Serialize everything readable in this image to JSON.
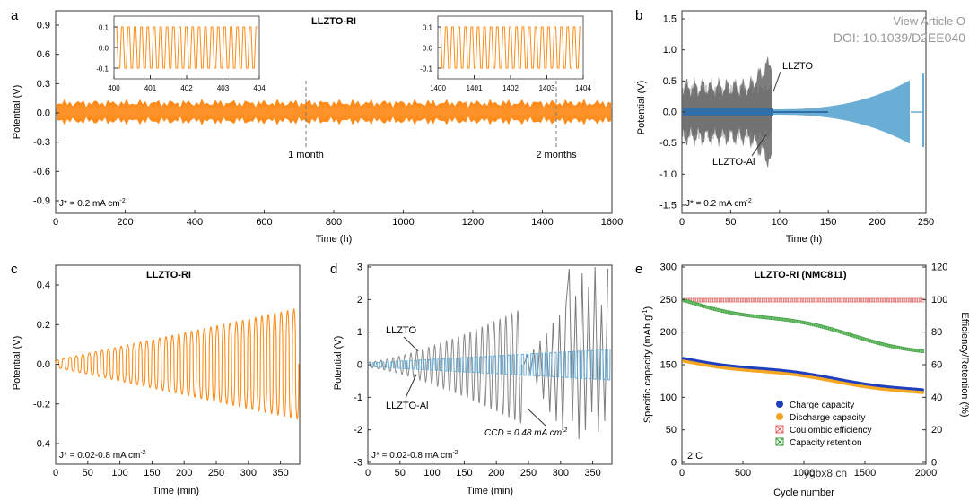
{
  "watermark": {
    "line1": "View Article O",
    "line2": "DOI: 10.1039/D2EE040",
    "site": "ygbx8.cn"
  },
  "panels": {
    "a": {
      "letter": "a",
      "title": "LLZTO-RI",
      "xlabel": "Time (h)",
      "ylabel": "Potential (V)",
      "xticks": [
        "0",
        "200",
        "400",
        "600",
        "800",
        "1000",
        "1200",
        "1400",
        "1600"
      ],
      "yticks": [
        "0.9",
        "0.6",
        "0.3",
        "0.0",
        "-0.3",
        "-0.6",
        "-0.9"
      ],
      "jlabel": "J* = 0.2 mA cm",
      "jsup": "-2",
      "ann1": "1 month",
      "ann2": "2 months",
      "inset1_xticks": [
        "400",
        "401",
        "402",
        "403",
        "404"
      ],
      "inset2_xticks": [
        "1400",
        "1401",
        "1402",
        "1403",
        "1404"
      ],
      "inset_yticks": [
        "0.1",
        "0.0",
        "-0.1"
      ]
    },
    "b": {
      "letter": "b",
      "xlabel": "Time (h)",
      "ylabel": "Potential (V)",
      "xticks": [
        "0",
        "50",
        "100",
        "150",
        "200",
        "250"
      ],
      "yticks": [
        "1.5",
        "1.0",
        "0.5",
        "0.0",
        "-0.5",
        "-1.0",
        "-1.5"
      ],
      "jlabel": "J* = 0.2 mA cm",
      "jsup": "-2",
      "lab1": "LLZTO",
      "lab2": "LLZTO-Al"
    },
    "c": {
      "letter": "c",
      "title": "LLZTO-RI",
      "xlabel": "Time (min)",
      "ylabel": "Potential (V)",
      "xticks": [
        "0",
        "50",
        "100",
        "150",
        "200",
        "250",
        "300",
        "350"
      ],
      "yticks": [
        "0.4",
        "0.2",
        "0.0",
        "-0.2",
        "-0.4"
      ],
      "jlabel": "J* = 0.02-0.8 mA cm",
      "jsup": "-2"
    },
    "d": {
      "letter": "d",
      "xlabel": "Time (min)",
      "ylabel": "Potential (V)",
      "xticks": [
        "0",
        "50",
        "100",
        "150",
        "200",
        "250",
        "300",
        "350"
      ],
      "yticks": [
        "3",
        "2",
        "1",
        "0",
        "-1",
        "-2",
        "-3"
      ],
      "jlabel": "J* = 0.02-0.8 mA cm",
      "jsup": "-2",
      "lab1": "LLZTO",
      "lab2": "LLZTO-Al",
      "ccd": "CCD = 0.48 mA cm",
      "ccdsup": "-2"
    },
    "e": {
      "letter": "e",
      "title": "LLZTO-RI (NMC811)",
      "xlabel": "Cycle number",
      "ylabel": "Specific capacity (mAh g",
      "ylabel_sup": "-1",
      "ylabel_end": ")",
      "y2label": "Efficiency/Retention (%)",
      "xticks": [
        "0",
        "500",
        "1000",
        "1500",
        "2000"
      ],
      "yticks": [
        "300",
        "250",
        "200",
        "150",
        "100",
        "50",
        "0"
      ],
      "y2ticks": [
        "120",
        "100",
        "80",
        "60",
        "40",
        "20",
        "0"
      ],
      "rate": "2 C",
      "legend": [
        "Charge capacity",
        "Discharge capacity",
        "Coulombic efficiency",
        "Capacity retention"
      ]
    }
  },
  "colors": {
    "orange": "#ff8c1a",
    "gray": "#6e6e6e",
    "blue": "#2f6ea6",
    "lightblue": "#6aaed6",
    "legend_blue": "#1f3fbf",
    "legend_orange": "#f5a623",
    "legend_red": "#e06060",
    "legend_green": "#3a9a3a"
  }
}
